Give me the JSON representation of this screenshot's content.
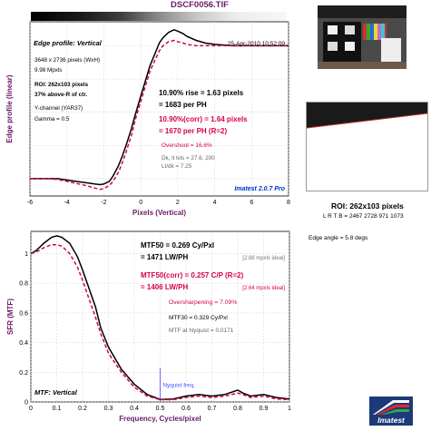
{
  "file_title": "DSCF0056.TIF",
  "roi": "ROI: 262x103 pixels",
  "lrtb": "L R T B = 2467 2728 971 1073",
  "edge_angle": "Edge angle = 5.8 degs",
  "logo_text": "Imatest",
  "colors": {
    "uncorrected": "#000000",
    "corrected": "#d6004f",
    "title": "#6a1b6a",
    "nyquist": "#4b4bff",
    "info": "#0033cc"
  },
  "chart_data": [
    {
      "type": "line",
      "title": "Edge profile: Vertical",
      "timestamp": "25-Apr-2010 10:52:09",
      "info_lines": [
        "3648 x 2736 pixels (WxH)",
        "9.98 Mpxls",
        "ROI: 262x103 pixels",
        "37% above-R of ctr.",
        "Y-channel (YAR37)",
        "Gamma = 0.5"
      ],
      "stats": {
        "rise": "10.90% rise = 1.63 pixels",
        "per_ph": "= 1683 per PH",
        "rise_corr": "10.90%(corr) = 1.64 pixels",
        "per_ph_corr": "= 1670 per PH  (R=2)",
        "overshoot": "Overshoot = 16.6%",
        "dk_lt": "Dk, lt lvls = 27.6, 200",
        "ltdk": "Lt/dk = 7.25"
      },
      "version": "Imatest 2.0.7 Pro",
      "xlabel": "Pixels (Vertical)",
      "ylabel": "Edge profile (linear)",
      "xlim": [
        -6,
        8
      ],
      "xticks": [
        -6,
        -4,
        -2,
        0,
        2,
        4,
        6,
        8
      ],
      "ylim": [
        -0.13,
        1.18
      ],
      "grid": true,
      "series": [
        {
          "x": [
            -6,
            -5,
            -4.5,
            -4,
            -3.5,
            -3,
            -2.5,
            -2.2,
            -2,
            -1.7,
            -1.5,
            -1.2,
            -1,
            -0.8,
            -0.5,
            -0.3,
            0,
            0.3,
            0.5,
            0.8,
            1,
            1.2,
            1.5,
            1.8,
            2,
            2.3,
            2.5,
            3,
            3.5,
            4,
            5,
            6,
            7,
            8
          ],
          "y": [
            0,
            0,
            0,
            -0.01,
            -0.02,
            -0.03,
            -0.04,
            -0.045,
            -0.04,
            -0.02,
            0.02,
            0.1,
            0.17,
            0.25,
            0.38,
            0.48,
            0.62,
            0.76,
            0.85,
            0.95,
            1.02,
            1.06,
            1.1,
            1.12,
            1.11,
            1.09,
            1.07,
            1.04,
            1.02,
            1.01,
            1,
            1,
            1,
            1
          ]
        },
        {
          "x": [
            -6,
            -5,
            -4.5,
            -4,
            -3.5,
            -3,
            -2.5,
            -2.2,
            -2,
            -1.7,
            -1.5,
            -1.2,
            -1,
            -0.8,
            -0.5,
            -0.3,
            0,
            0.3,
            0.5,
            0.8,
            1,
            1.2,
            1.5,
            1.8,
            2,
            2.3,
            2.5,
            3,
            3.5,
            4,
            5,
            6,
            7,
            8
          ],
          "y": [
            0,
            0,
            -0.005,
            -0.02,
            -0.035,
            -0.05,
            -0.07,
            -0.08,
            -0.075,
            -0.05,
            -0.02,
            0.05,
            0.12,
            0.2,
            0.33,
            0.44,
            0.58,
            0.72,
            0.81,
            0.9,
            0.96,
            1,
            1.03,
            1.04,
            1.03,
            1.02,
            1.01,
            1,
            1,
            1,
            1,
            1,
            1,
            1
          ]
        }
      ]
    },
    {
      "type": "line",
      "title": "MTF: Vertical",
      "stats": {
        "mtf50": "MTF50 = 0.269 Cy/Pxl",
        "mtf50_lw": "= 1471 LW/PH",
        "ideal1": "[2.88 mpxls ideal]",
        "mtf50c": "MTF50(corr) = 0.257 C/P  (R=2)",
        "mtf50c_lw": "= 1406 LW/PH",
        "ideal2": "[2.64 mpxls ideal]",
        "oversharp": "Oversharpening = 7.09%",
        "mtf30": "MTF30 = 0.329 Cy/Pxl",
        "nyq": "MTF at Nyquist = 0.0171"
      },
      "nyquist_label": "Nyquist freq.",
      "nyquist_x": 0.5,
      "xlabel": "Frequency, Cycles/pixel",
      "ylabel": "SFR (MTF)",
      "xlim": [
        0,
        1
      ],
      "xticks": [
        0,
        0.1,
        0.2,
        0.3,
        0.4,
        0.5,
        0.6,
        0.7,
        0.8,
        0.9,
        1
      ],
      "ylim": [
        0,
        1.15
      ],
      "yticks": [
        0,
        0.2,
        0.4,
        0.6,
        0.8,
        1
      ],
      "grid": true,
      "series": [
        {
          "x": [
            0,
            0.02,
            0.05,
            0.08,
            0.1,
            0.12,
            0.15,
            0.18,
            0.2,
            0.22,
            0.25,
            0.27,
            0.3,
            0.33,
            0.35,
            0.4,
            0.45,
            0.5,
            0.55,
            0.6,
            0.65,
            0.7,
            0.75,
            0.8,
            0.82,
            0.85,
            0.9,
            0.95,
            1
          ],
          "y": [
            1,
            1.02,
            1.07,
            1.11,
            1.12,
            1.11,
            1.07,
            0.98,
            0.89,
            0.79,
            0.64,
            0.5,
            0.37,
            0.28,
            0.22,
            0.12,
            0.05,
            0.017,
            0.02,
            0.04,
            0.05,
            0.04,
            0.05,
            0.08,
            0.06,
            0.04,
            0.05,
            0.03,
            0.02
          ]
        },
        {
          "x": [
            0,
            0.02,
            0.05,
            0.08,
            0.1,
            0.12,
            0.15,
            0.18,
            0.2,
            0.22,
            0.25,
            0.27,
            0.3,
            0.33,
            0.35,
            0.4,
            0.45,
            0.5,
            0.55,
            0.6,
            0.65,
            0.7,
            0.75,
            0.8,
            0.82,
            0.85,
            0.9,
            0.95,
            1
          ],
          "y": [
            1,
            1.01,
            1.04,
            1.06,
            1.06,
            1.05,
            1.0,
            0.91,
            0.82,
            0.72,
            0.57,
            0.46,
            0.33,
            0.25,
            0.2,
            0.1,
            0.04,
            0.015,
            0.015,
            0.03,
            0.04,
            0.03,
            0.04,
            0.06,
            0.05,
            0.03,
            0.04,
            0.02,
            0.015
          ]
        }
      ]
    }
  ]
}
